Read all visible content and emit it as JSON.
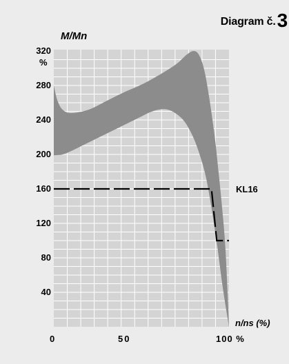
{
  "diagram_title": "Diagram č.",
  "diagram_number": "3",
  "chart_data": {
    "type": "area",
    "ylabel": "M/Mn",
    "y_unit": "%",
    "xlabel": "n/ns (%)",
    "x_ticks": [
      "0",
      "50",
      "100 %"
    ],
    "y_ticks": [
      "40",
      "80",
      "120",
      "160",
      "200",
      "240",
      "280",
      "320"
    ],
    "xlim": [
      0,
      100
    ],
    "ylim": [
      0,
      320
    ],
    "grid": true,
    "colors": {
      "band": "#8c8c8c",
      "plot_bg": "#d4d4d4",
      "grid": "#ffffff",
      "page_bg": "#ececec"
    },
    "torque_band": {
      "upper": [
        [
          0,
          280
        ],
        [
          2,
          263
        ],
        [
          5,
          252
        ],
        [
          10,
          248
        ],
        [
          20,
          252
        ],
        [
          30,
          262
        ],
        [
          40,
          272
        ],
        [
          50,
          281
        ],
        [
          60,
          292
        ],
        [
          70,
          305
        ],
        [
          76,
          316
        ],
        [
          80,
          320
        ],
        [
          83,
          315
        ],
        [
          86,
          297
        ],
        [
          89,
          262
        ],
        [
          92,
          218
        ],
        [
          94,
          180
        ],
        [
          96,
          140
        ],
        [
          98,
          90
        ],
        [
          100,
          2
        ]
      ],
      "lower": [
        [
          0,
          199
        ],
        [
          5,
          200
        ],
        [
          10,
          204
        ],
        [
          20,
          214
        ],
        [
          30,
          224
        ],
        [
          40,
          234
        ],
        [
          50,
          244
        ],
        [
          55,
          249
        ],
        [
          60,
          252
        ],
        [
          65,
          252
        ],
        [
          70,
          247
        ],
        [
          75,
          237
        ],
        [
          80,
          218
        ],
        [
          84,
          195
        ],
        [
          87,
          172
        ],
        [
          90,
          138
        ],
        [
          93,
          98
        ],
        [
          96,
          52
        ],
        [
          98,
          25
        ],
        [
          100,
          0
        ]
      ]
    },
    "limit_line": {
      "name": "KL16",
      "style": "dashed",
      "points": [
        [
          0,
          160
        ],
        [
          90,
          160
        ],
        [
          93,
          100
        ],
        [
          100,
          100
        ]
      ]
    }
  }
}
